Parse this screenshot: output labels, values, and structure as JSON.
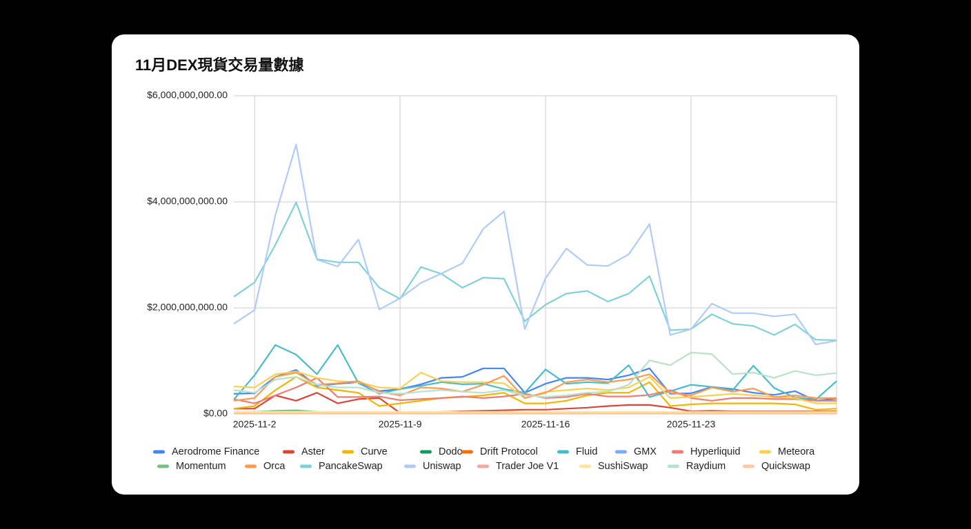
{
  "chart_data": {
    "type": "line",
    "title": "11月DEX現貨交易量數據",
    "categories": [
      null,
      "2025-11-2",
      null,
      null,
      null,
      null,
      null,
      null,
      "2025-11-9",
      null,
      null,
      null,
      null,
      null,
      null,
      "2025-11-16",
      null,
      null,
      null,
      null,
      null,
      null,
      "2025-11-23",
      null,
      null,
      null,
      null,
      null,
      null,
      null
    ],
    "ylim": [
      0,
      6000000000
    ],
    "yticks": [
      {
        "value": 0,
        "label": "$0.00"
      },
      {
        "value": 2000000000,
        "label": "$2,000,000,000.00"
      },
      {
        "value": 4000000000,
        "label": "$4,000,000,000.00"
      },
      {
        "value": 6000000000,
        "label": "$6,000,000,000.00"
      }
    ],
    "grid": true,
    "series": [
      {
        "name": "Aerodrome Finance",
        "color": "#4285f4",
        "values": [
          380000000,
          390000000,
          700000000,
          830000000,
          530000000,
          570000000,
          600000000,
          430000000,
          470000000,
          560000000,
          680000000,
          700000000,
          860000000,
          860000000,
          400000000,
          570000000,
          680000000,
          680000000,
          650000000,
          730000000,
          860000000,
          380000000,
          390000000,
          510000000,
          470000000,
          400000000,
          360000000,
          430000000,
          250000000,
          290000000
        ]
      },
      {
        "name": "Aster",
        "color": "#db4437",
        "values": [
          100000000,
          100000000,
          350000000,
          250000000,
          400000000,
          200000000,
          280000000,
          300000000,
          20000000,
          30000000,
          40000000,
          50000000,
          60000000,
          70000000,
          80000000,
          80000000,
          100000000,
          120000000,
          150000000,
          170000000,
          170000000,
          120000000,
          50000000,
          60000000,
          50000000,
          50000000,
          50000000,
          50000000,
          50000000,
          50000000
        ]
      },
      {
        "name": "Curve",
        "color": "#f4b400",
        "values": [
          100000000,
          150000000,
          450000000,
          700000000,
          500000000,
          450000000,
          400000000,
          150000000,
          200000000,
          250000000,
          300000000,
          320000000,
          350000000,
          400000000,
          200000000,
          200000000,
          250000000,
          350000000,
          400000000,
          400000000,
          600000000,
          150000000,
          180000000,
          200000000,
          200000000,
          200000000,
          200000000,
          180000000,
          80000000,
          100000000
        ]
      },
      {
        "name": "Dodo",
        "color": "#0f9d58",
        "values": [
          30000000,
          30000000,
          40000000,
          50000000,
          30000000,
          20000000,
          20000000,
          20000000,
          20000000,
          20000000,
          20000000,
          20000000,
          20000000,
          20000000,
          20000000,
          20000000,
          20000000,
          20000000,
          20000000,
          20000000,
          20000000,
          20000000,
          20000000,
          20000000,
          20000000,
          20000000,
          20000000,
          20000000,
          20000000,
          20000000
        ]
      },
      {
        "name": "Drift Protocol",
        "color": "#ff6d01",
        "values": [
          10000000,
          10000000,
          10000000,
          10000000,
          10000000,
          10000000,
          10000000,
          10000000,
          10000000,
          10000000,
          10000000,
          10000000,
          10000000,
          10000000,
          10000000,
          10000000,
          10000000,
          10000000,
          10000000,
          10000000,
          10000000,
          10000000,
          10000000,
          10000000,
          10000000,
          10000000,
          10000000,
          10000000,
          10000000,
          10000000
        ]
      },
      {
        "name": "Fluid",
        "color": "#46bdc6",
        "values": [
          270000000,
          730000000,
          1300000000,
          1120000000,
          750000000,
          1300000000,
          580000000,
          380000000,
          470000000,
          530000000,
          600000000,
          560000000,
          570000000,
          470000000,
          400000000,
          840000000,
          570000000,
          600000000,
          580000000,
          920000000,
          320000000,
          430000000,
          550000000,
          510000000,
          450000000,
          910000000,
          490000000,
          310000000,
          270000000,
          620000000
        ]
      },
      {
        "name": "GMX",
        "color": "#7baaf7",
        "values": [
          30000000,
          30000000,
          30000000,
          30000000,
          30000000,
          30000000,
          30000000,
          30000000,
          30000000,
          30000000,
          30000000,
          30000000,
          30000000,
          30000000,
          30000000,
          30000000,
          30000000,
          30000000,
          30000000,
          30000000,
          30000000,
          30000000,
          30000000,
          30000000,
          30000000,
          30000000,
          30000000,
          30000000,
          30000000,
          30000000
        ]
      },
      {
        "name": "Hyperliquid",
        "color": "#f07b72",
        "values": [
          280000000,
          200000000,
          350000000,
          500000000,
          680000000,
          320000000,
          320000000,
          330000000,
          260000000,
          280000000,
          300000000,
          330000000,
          300000000,
          330000000,
          380000000,
          300000000,
          320000000,
          380000000,
          330000000,
          330000000,
          360000000,
          450000000,
          300000000,
          250000000,
          300000000,
          300000000,
          280000000,
          280000000,
          250000000,
          250000000
        ]
      },
      {
        "name": "Meteora",
        "color": "#fcd04f",
        "values": [
          520000000,
          500000000,
          750000000,
          800000000,
          680000000,
          620000000,
          600000000,
          500000000,
          480000000,
          780000000,
          620000000,
          600000000,
          600000000,
          580000000,
          300000000,
          420000000,
          450000000,
          480000000,
          450000000,
          500000000,
          700000000,
          300000000,
          320000000,
          350000000,
          380000000,
          350000000,
          320000000,
          300000000,
          200000000,
          200000000
        ]
      },
      {
        "name": "Momentum",
        "color": "#71c287",
        "values": [
          20000000,
          40000000,
          60000000,
          70000000,
          40000000,
          30000000,
          30000000,
          30000000,
          30000000,
          30000000,
          30000000,
          30000000,
          30000000,
          30000000,
          30000000,
          30000000,
          30000000,
          30000000,
          30000000,
          30000000,
          30000000,
          30000000,
          30000000,
          30000000,
          30000000,
          30000000,
          30000000,
          30000000,
          30000000,
          30000000
        ]
      },
      {
        "name": "Orca",
        "color": "#ff994d",
        "values": [
          250000000,
          300000000,
          700000000,
          780000000,
          550000000,
          580000000,
          620000000,
          420000000,
          350000000,
          500000000,
          480000000,
          420000000,
          550000000,
          720000000,
          300000000,
          400000000,
          600000000,
          650000000,
          600000000,
          650000000,
          750000000,
          400000000,
          350000000,
          500000000,
          420000000,
          480000000,
          320000000,
          350000000,
          300000000,
          300000000
        ]
      },
      {
        "name": "PancakeSwap",
        "color": "#7ed1d7",
        "values": [
          2210000000,
          2480000000,
          3190000000,
          3990000000,
          2920000000,
          2860000000,
          2860000000,
          2380000000,
          2170000000,
          2770000000,
          2640000000,
          2380000000,
          2570000000,
          2550000000,
          1750000000,
          2060000000,
          2270000000,
          2320000000,
          2120000000,
          2270000000,
          2600000000,
          1580000000,
          1600000000,
          1880000000,
          1700000000,
          1660000000,
          1490000000,
          1690000000,
          1400000000,
          1390000000
        ]
      },
      {
        "name": "Uniswap",
        "color": "#aecbfa",
        "values": [
          1700000000,
          1960000000,
          3750000000,
          5080000000,
          2910000000,
          2780000000,
          3290000000,
          1970000000,
          2180000000,
          2470000000,
          2650000000,
          2840000000,
          3490000000,
          3820000000,
          1600000000,
          2560000000,
          3120000000,
          2810000000,
          2790000000,
          3010000000,
          3580000000,
          1490000000,
          1600000000,
          2080000000,
          1900000000,
          1900000000,
          1840000000,
          1880000000,
          1310000000,
          1380000000
        ]
      },
      {
        "name": "Trader Joe V1",
        "color": "#f7a7a3",
        "values": [
          30000000,
          30000000,
          30000000,
          30000000,
          30000000,
          30000000,
          30000000,
          30000000,
          30000000,
          30000000,
          30000000,
          30000000,
          30000000,
          30000000,
          30000000,
          30000000,
          30000000,
          30000000,
          30000000,
          30000000,
          30000000,
          30000000,
          30000000,
          30000000,
          30000000,
          30000000,
          30000000,
          30000000,
          30000000,
          30000000
        ]
      },
      {
        "name": "SushiSwap",
        "color": "#ffe599",
        "values": [
          40000000,
          40000000,
          40000000,
          40000000,
          40000000,
          40000000,
          40000000,
          40000000,
          40000000,
          40000000,
          40000000,
          40000000,
          40000000,
          40000000,
          40000000,
          40000000,
          40000000,
          40000000,
          40000000,
          40000000,
          40000000,
          40000000,
          40000000,
          40000000,
          40000000,
          40000000,
          40000000,
          40000000,
          40000000,
          40000000
        ]
      },
      {
        "name": "Raydium",
        "color": "#b7e1cd",
        "values": [
          450000000,
          400000000,
          650000000,
          700000000,
          550000000,
          500000000,
          500000000,
          400000000,
          380000000,
          420000000,
          450000000,
          420000000,
          400000000,
          450000000,
          350000000,
          320000000,
          350000000,
          400000000,
          420000000,
          550000000,
          1010000000,
          920000000,
          1160000000,
          1130000000,
          750000000,
          780000000,
          680000000,
          810000000,
          730000000,
          770000000
        ]
      },
      {
        "name": "Quickswap",
        "color": "#ffc8a6",
        "values": [
          10000000,
          10000000,
          10000000,
          10000000,
          10000000,
          10000000,
          10000000,
          10000000,
          10000000,
          10000000,
          10000000,
          10000000,
          10000000,
          10000000,
          10000000,
          10000000,
          10000000,
          10000000,
          10000000,
          10000000,
          10000000,
          10000000,
          10000000,
          10000000,
          10000000,
          10000000,
          10000000,
          10000000,
          10000000,
          10000000
        ]
      }
    ]
  }
}
